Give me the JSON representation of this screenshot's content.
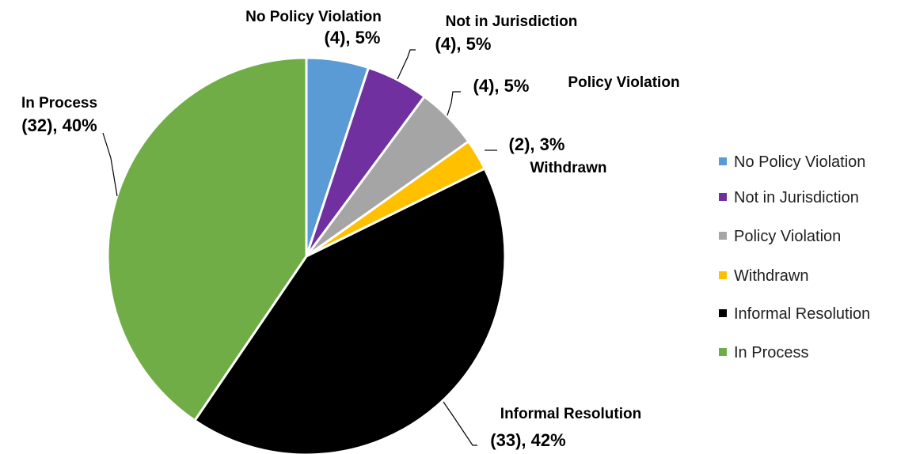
{
  "chart_data": {
    "type": "pie",
    "title": "",
    "legend_position": "right",
    "slices": [
      {
        "name": "No Policy Violation",
        "count": 4,
        "percent": 5,
        "value_label": "(4), 5%",
        "color": "#5B9BD5"
      },
      {
        "name": "Not in Jurisdiction",
        "count": 4,
        "percent": 5,
        "value_label": "(4), 5%",
        "color": "#7030A0"
      },
      {
        "name": "Policy Violation",
        "count": 4,
        "percent": 5,
        "value_label": "(4), 5%",
        "color": "#A5A5A5"
      },
      {
        "name": "Withdrawn",
        "count": 2,
        "percent": 3,
        "value_label": "(2), 3%",
        "color": "#FFC000"
      },
      {
        "name": "Informal Resolution",
        "count": 33,
        "percent": 42,
        "value_label": "(33), 42%",
        "color": "#000000"
      },
      {
        "name": "In Process",
        "count": 32,
        "percent": 40,
        "value_label": "(32), 40%",
        "color": "#70AD47"
      }
    ]
  }
}
